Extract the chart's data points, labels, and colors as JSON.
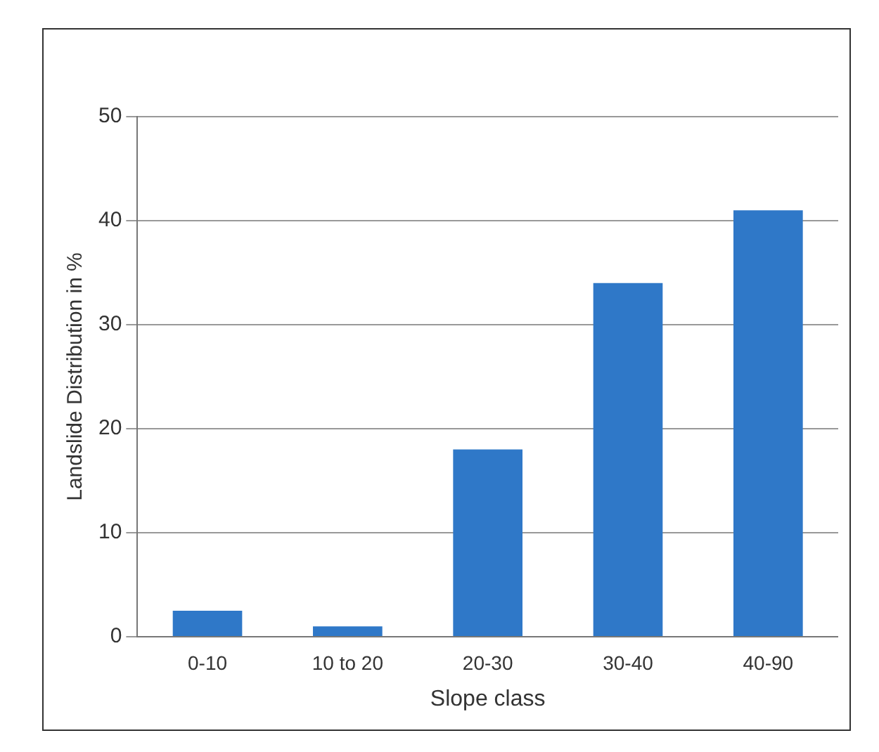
{
  "chart_data": {
    "type": "bar",
    "xlabel": "Slope class",
    "ylabel": "Landslide Distribution in %",
    "categories": [
      "0-10",
      "10 to 20",
      "20-30",
      "30-40",
      "40-90"
    ],
    "series": [
      {
        "color": "#2f78c8",
        "values": [
          2.5,
          1,
          18,
          34,
          41
        ]
      }
    ],
    "ylim": [
      0,
      50
    ],
    "yticks": [
      0,
      10,
      20,
      30,
      40,
      50
    ],
    "grid": "y",
    "legend": false
  }
}
